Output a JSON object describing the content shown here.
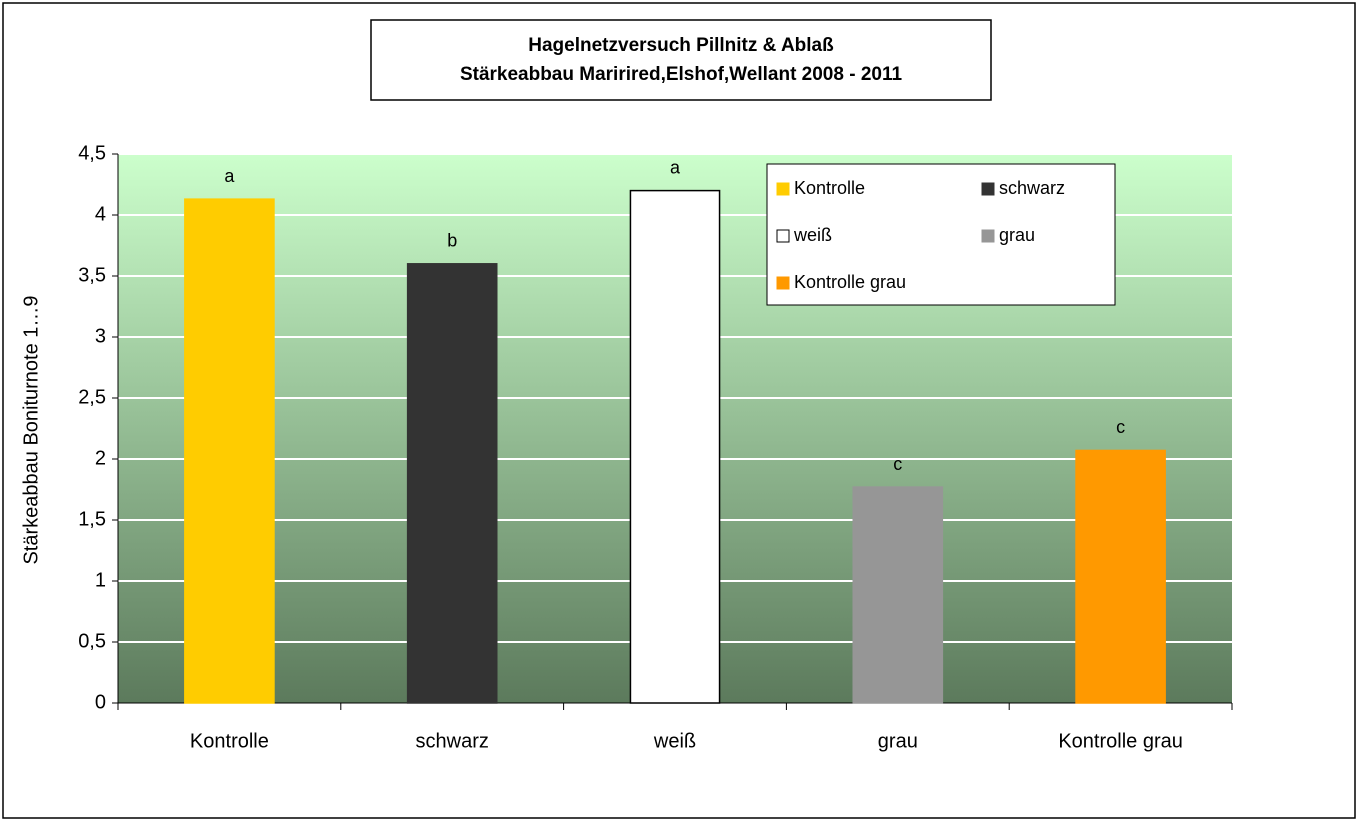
{
  "chart_data": {
    "type": "bar",
    "title": [
      "Hagelnetzversuch Pillnitz & Ablaß",
      "Stärkeabbau Maririred,Elshof,Wellant 2008 - 2011"
    ],
    "y_label": "Stärkeabbau  Boniturnote 1…9",
    "categories": [
      "Kontrolle",
      "schwarz",
      "weiß",
      "grau",
      "Kontrolle grau"
    ],
    "values": [
      4.13,
      3.6,
      4.2,
      1.77,
      2.07
    ],
    "annotations": [
      "a",
      "b",
      "a",
      "c",
      "c"
    ],
    "colors": [
      "#ffcc00",
      "#333333",
      "#ffffff",
      "#969696",
      "#ff9900"
    ],
    "ylim": [
      0,
      4.5
    ],
    "yticks": [
      0,
      {
        "value": 0.5,
        "label": "0,5"
      },
      1,
      {
        "value": 1.5,
        "label": "1,5"
      },
      2,
      {
        "value": 2.5,
        "label": "2,5"
      },
      3,
      {
        "value": 3.5,
        "label": "3,5"
      },
      4,
      {
        "value": 4.5,
        "label": "4,5"
      }
    ],
    "grid": true,
    "legend": "upper right"
  }
}
